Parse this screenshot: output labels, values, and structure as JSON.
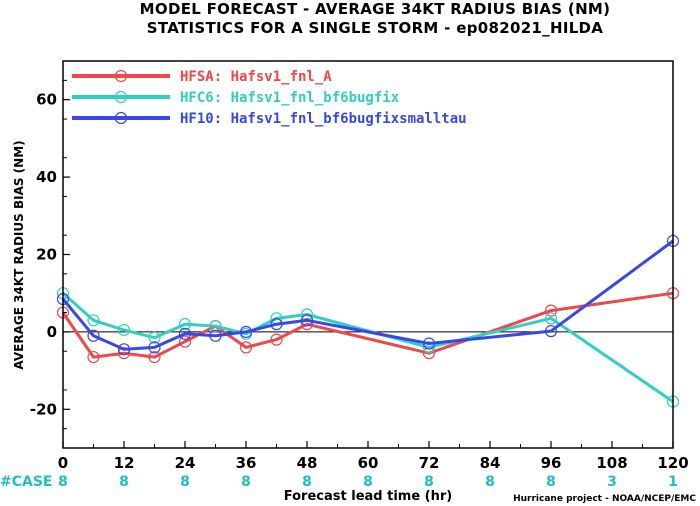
{
  "chart_data": {
    "type": "line",
    "title": "MODEL FORECAST - AVERAGE 34KT RADIUS BIAS (NM)",
    "subtitle": "STATISTICS FOR A SINGLE STORM - ep082021_HILDA",
    "xlabel": "Forecast lead time (hr)",
    "ylabel": "AVERAGE 34KT RADIUS BIAS (NM)",
    "xlim": [
      0,
      120
    ],
    "ylim": [
      -30,
      70
    ],
    "x_ticks": [
      0,
      12,
      24,
      36,
      48,
      60,
      72,
      84,
      96,
      108,
      120
    ],
    "y_ticks": [
      -20,
      0,
      20,
      40,
      60
    ],
    "case_label": "#CASE",
    "case_x": [
      0,
      12,
      24,
      36,
      48,
      60,
      72,
      84,
      96,
      108,
      120
    ],
    "case_counts": [
      "8",
      "8",
      "8",
      "8",
      "8",
      "8",
      "8",
      "8",
      "8",
      "3",
      "1"
    ],
    "credit": "Hurricane project - NOAA/NCEP/EMC",
    "legend_position": "top-left",
    "series": [
      {
        "name": "HFSA: Hafsv1_fnl_A",
        "color": "#f04848",
        "x": [
          0,
          6,
          12,
          18,
          24,
          30,
          36,
          42,
          48,
          72,
          96,
          120
        ],
        "y": [
          5,
          -6.5,
          -5.5,
          -6.5,
          -2.5,
          1.5,
          -4,
          -2,
          2,
          -5.5,
          5.5,
          10
        ]
      },
      {
        "name": "HFC6: Hafsv1_fnl_bf6bugfix",
        "color": "#30d0c0",
        "x": [
          0,
          6,
          12,
          18,
          24,
          30,
          36,
          42,
          48,
          72,
          96,
          120
        ],
        "y": [
          10,
          3,
          0.5,
          -1.5,
          2,
          1.5,
          -0.5,
          3.5,
          4.5,
          -4,
          3.5,
          -18
        ]
      },
      {
        "name": "HF10: Hafsv1_fnl_bf6bugfixsmalltau",
        "color": "#3848e8",
        "x": [
          0,
          6,
          12,
          18,
          24,
          30,
          36,
          42,
          48,
          72,
          96,
          120
        ],
        "y": [
          8.5,
          -1,
          -4.5,
          -4,
          -0.5,
          -1,
          0,
          2,
          3,
          -3,
          0.2,
          23.5
        ]
      }
    ]
  }
}
